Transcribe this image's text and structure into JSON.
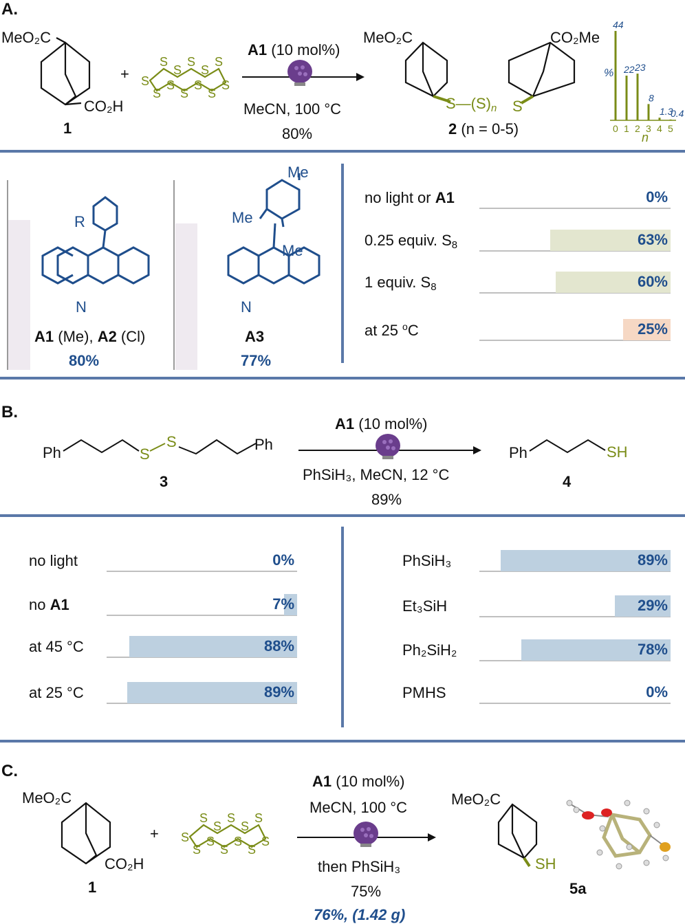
{
  "section_a": {
    "label": "A.",
    "substrate_ester": "MeO₂C",
    "substrate_acid": "CO₂H",
    "substrate_number": "1",
    "plus": "+",
    "reagent_s_label": "S",
    "catalyst": "A1",
    "catalyst_loading": "(10 mol%)",
    "conditions": "MeCN, 100 °C",
    "yield": "80%",
    "product_ester_left": "MeO₂C",
    "product_ester_right": "CO₂Me",
    "product_linker": "S—(S)",
    "product_linker_n": "n",
    "product_s_right": "S",
    "product_number": "2",
    "product_range": "(n = 0-5)",
    "distribution": {
      "ylabel": "%",
      "xlabel": "n",
      "categories": [
        "0",
        "1",
        "2",
        "3",
        "4",
        "5"
      ],
      "values": [
        44,
        22,
        23,
        8,
        1.3,
        0.4
      ],
      "value_labels": [
        "44",
        "22",
        "23",
        "8",
        "1.3",
        "0.4"
      ]
    },
    "catalysts": {
      "a1_r": "R",
      "a1_n": "N",
      "a1_label_part1": "A1",
      "a1_label_part2": " (Me), ",
      "a1_label_part3": "A2",
      "a1_label_part4": " (Cl)",
      "a1_yield": "80%",
      "a3_me_top": "Me",
      "a3_me_left": "Me",
      "a3_me_right": "Me",
      "a3_n": "N",
      "a3_label": "A3",
      "a3_yield": "77%"
    },
    "controls": [
      {
        "label_pre": "no light or ",
        "label_bold": "A1",
        "value": "0%",
        "fraction": 0,
        "color": "#dfe3c7"
      },
      {
        "label_pre": "0.25 equiv. S",
        "label_sub": "8",
        "value": "63%",
        "fraction": 0.63,
        "color": "#e3e6cf"
      },
      {
        "label_pre": "1 equiv. S",
        "label_sub": "8",
        "value": "60%",
        "fraction": 0.6,
        "color": "#e3e6cf"
      },
      {
        "label_pre": "at 25 ",
        "label_sup": "o",
        "label_post": "C",
        "value": "25%",
        "fraction": 0.25,
        "color": "#f6d8c4"
      }
    ]
  },
  "section_b": {
    "label": "B.",
    "sm_ph_left": "Ph",
    "sm_ph_right": "Ph",
    "sm_s1": "S",
    "sm_s2": "S",
    "sm_number": "3",
    "catalyst": "A1",
    "catalyst_loading": "(10 mol%)",
    "conditions": "PhSiH₃, MeCN, 12 °C",
    "yield": "89%",
    "product_ph": "Ph",
    "product_sh": "SH",
    "product_number": "4",
    "controls_left": [
      {
        "label": "no light",
        "value": "0%",
        "fraction": 0
      },
      {
        "label_pre": "no ",
        "label_bold": "A1",
        "value": "7%",
        "fraction": 0.07
      },
      {
        "label": "at 45 °C",
        "value": "88%",
        "fraction": 0.88
      },
      {
        "label": "at 25 °C",
        "value": "89%",
        "fraction": 0.89
      }
    ],
    "controls_right": [
      {
        "label": "PhSiH₃",
        "value": "89%",
        "fraction": 0.89
      },
      {
        "label": "Et₃SiH",
        "value": "29%",
        "fraction": 0.29
      },
      {
        "label": "Ph₂SiH₂",
        "value": "78%",
        "fraction": 0.78
      },
      {
        "label": "PMHS",
        "value": "0%",
        "fraction": 0
      }
    ],
    "bar_color": "#bdd0e0"
  },
  "section_c": {
    "label": "C.",
    "substrate_ester": "MeO₂C",
    "substrate_acid": "CO₂H",
    "substrate_number": "1",
    "plus": "+",
    "catalyst": "A1",
    "catalyst_loading": "(10 mol%)",
    "conditions_1": "MeCN, 100 °C",
    "conditions_2": "then PhSiH₃",
    "yield": "75%",
    "scale_yield": "76%, (1.42 g)",
    "product_ester": "MeO₂C",
    "product_sh": "SH",
    "product_number": "5a"
  }
}
